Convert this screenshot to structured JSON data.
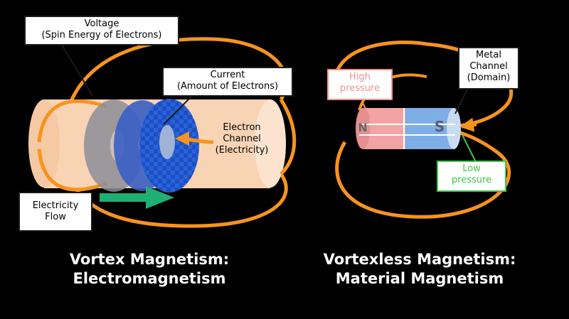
{
  "left_diagram": {
    "voltage_label": "Voltage\n(Spin Energy of Electrons)",
    "current_label": "Current\n(Amount of Electrons)",
    "channel_label": "Electron\nChannel\n(Electricity)",
    "flow_label": "Electricity\nFlow",
    "caption": "Vortex Magnetism:\nElectromagnetism"
  },
  "right_diagram": {
    "high_label": "High\npressure",
    "metal_label": "Metal\nChannel\n(Domain)",
    "low_label": "Low\npressure",
    "pole_n": "N",
    "pole_s": "S",
    "caption": "Vortexless Magnetism:\nMaterial Magnetism"
  },
  "colors": {
    "field_line": "#f7931e",
    "channel_body": "#f9d4b4",
    "flow_arrow": "#1fae74",
    "high_pressure": "#f09090",
    "low_pressure": "#3fc44a",
    "magnet_red": "#f2a3a3",
    "magnet_blue": "#7eaee6",
    "torus_dark": "#1c4ec4",
    "torus_mid": "#3a5ec4",
    "torus_grey": "#8d8d98"
  }
}
